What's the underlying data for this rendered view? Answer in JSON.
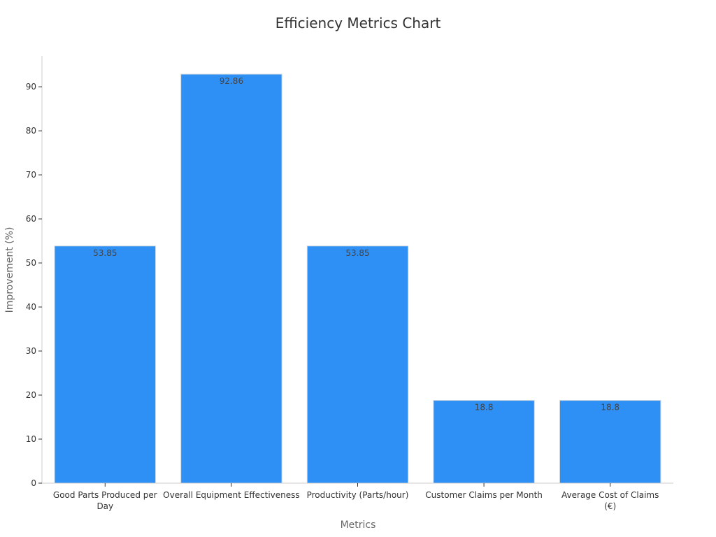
{
  "chart_data": {
    "type": "bar",
    "title": "Efficiency Metrics Chart",
    "xlabel": "Metrics",
    "ylabel": "Improvement (%)",
    "categories": [
      [
        "Good Parts Produced per",
        "Day"
      ],
      [
        "Overall Equipment Effectiveness"
      ],
      [
        "Productivity (Parts/hour)"
      ],
      [
        "Customer Claims per Month"
      ],
      [
        "Average Cost of Claims",
        "(€)"
      ]
    ],
    "values": [
      53.85,
      92.86,
      53.85,
      18.8,
      18.8
    ],
    "value_labels": [
      "53.85",
      "92.86",
      "53.85",
      "18.8",
      "18.8"
    ],
    "ylim": [
      0,
      97
    ],
    "yticks": [
      0,
      10,
      20,
      30,
      40,
      50,
      60,
      70,
      80,
      90
    ],
    "bar_color": "#2e90f5",
    "grid": false,
    "legend": "none"
  }
}
